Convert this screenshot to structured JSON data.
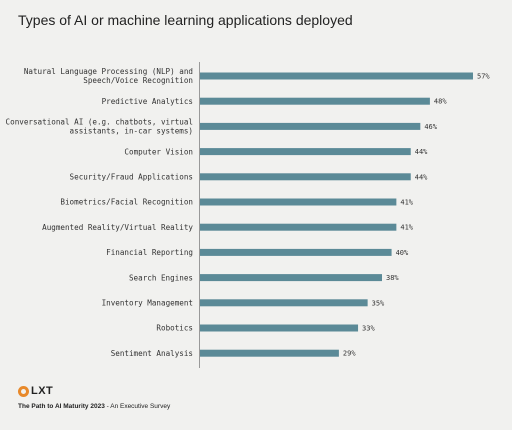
{
  "chart_data": {
    "type": "bar",
    "orientation": "horizontal",
    "title": "Types of AI or machine learning applications deployed",
    "categories": [
      [
        "Natural Language Processing (NLP) and",
        "Speech/Voice Recognition"
      ],
      [
        "Predictive Analytics"
      ],
      [
        "Conversational AI (e.g. chatbots, virtual",
        "assistants, in-car systems)"
      ],
      [
        "Computer Vision"
      ],
      [
        "Security/Fraud Applications"
      ],
      [
        "Biometrics/Facial Recognition"
      ],
      [
        "Augmented Reality/Virtual Reality"
      ],
      [
        "Financial Reporting"
      ],
      [
        "Search Engines"
      ],
      [
        "Inventory Management"
      ],
      [
        "Robotics"
      ],
      [
        "Sentiment Analysis"
      ]
    ],
    "values": [
      57,
      48,
      46,
      44,
      44,
      41,
      41,
      40,
      38,
      35,
      33,
      29
    ],
    "value_labels": [
      "57%",
      "48%",
      "46%",
      "44%",
      "44%",
      "41%",
      "41%",
      "40%",
      "38%",
      "35%",
      "33%",
      "29%"
    ],
    "xlim": [
      0,
      57
    ],
    "grid": false,
    "bar_color": "#5b8a97"
  },
  "footer": {
    "logo": "LXT",
    "source_bold": "The Path to AI Maturity 2023",
    "source_rest": " - An Executive Survey"
  },
  "colors": {
    "background": "#f1f1ef",
    "logo_accent": "#e8892a"
  }
}
